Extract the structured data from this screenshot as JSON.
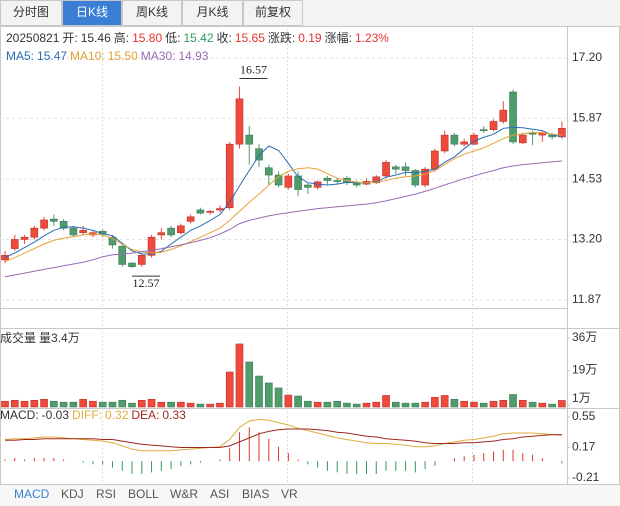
{
  "tabs": [
    "分时图",
    "日K线",
    "周K线",
    "月K线",
    "前复权"
  ],
  "active_tab": 1,
  "info": {
    "date": "20250821",
    "fields": [
      {
        "label": "开:",
        "value": "15.46",
        "color": "#333333"
      },
      {
        "label": "高:",
        "value": "15.80",
        "color": "#e2322b"
      },
      {
        "label": "低:",
        "value": "15.42",
        "color": "#2f9a5a"
      },
      {
        "label": "收:",
        "value": "15.65",
        "color": "#e2322b"
      },
      {
        "label": "涨跌:",
        "value": "0.19",
        "color": "#e2322b"
      },
      {
        "label": "涨幅:",
        "value": "1.23%",
        "color": "#e2322b"
      }
    ]
  },
  "indicator_tabs": [
    "MACD",
    "KDJ",
    "RSI",
    "BOLL",
    "W&R",
    "ASI",
    "BIAS",
    "VR"
  ],
  "active_indicator": 0,
  "chart_data": [
    {
      "type": "candlestick",
      "up_color": "#ef4a3c",
      "down_color": "#4f9d6d",
      "open": [
        12.75,
        13.0,
        13.2,
        13.25,
        13.45,
        13.65,
        13.6,
        13.45,
        13.35,
        13.3,
        13.38,
        13.25,
        13.05,
        12.68,
        12.65,
        12.85,
        13.3,
        13.45,
        13.35,
        13.6,
        13.85,
        13.8,
        13.85,
        13.9,
        15.3,
        15.5,
        15.2,
        14.78,
        14.62,
        14.35,
        14.6,
        14.4,
        14.35,
        14.55,
        14.5,
        14.55,
        14.45,
        14.42,
        14.45,
        14.6,
        14.8,
        14.8,
        14.72,
        14.4,
        14.75,
        15.15,
        15.5,
        15.3,
        15.3,
        15.62,
        15.62,
        15.8,
        16.45,
        15.33,
        15.55,
        15.5,
        15.5,
        15.46
      ],
      "high": [
        12.95,
        13.3,
        13.3,
        13.5,
        13.7,
        13.75,
        13.65,
        13.5,
        13.5,
        13.4,
        13.42,
        13.3,
        13.1,
        12.7,
        12.9,
        13.3,
        13.45,
        13.5,
        13.55,
        13.75,
        13.9,
        13.85,
        13.95,
        15.35,
        16.57,
        15.7,
        15.3,
        14.85,
        14.7,
        14.65,
        14.7,
        14.45,
        14.5,
        14.6,
        14.55,
        14.6,
        14.5,
        14.55,
        14.62,
        14.95,
        14.85,
        14.9,
        14.75,
        14.8,
        15.2,
        15.6,
        15.55,
        15.42,
        15.55,
        15.7,
        15.85,
        16.25,
        16.5,
        15.55,
        15.6,
        15.6,
        15.55,
        15.8
      ],
      "low": [
        12.68,
        12.95,
        13.1,
        13.2,
        13.4,
        13.5,
        13.4,
        13.25,
        13.3,
        13.25,
        13.25,
        13.0,
        12.6,
        12.57,
        12.6,
        12.8,
        13.2,
        13.25,
        13.3,
        13.55,
        13.75,
        13.75,
        13.8,
        13.85,
        15.2,
        14.85,
        14.8,
        14.4,
        14.35,
        14.3,
        14.15,
        14.2,
        14.3,
        14.4,
        14.42,
        14.4,
        14.35,
        14.4,
        14.42,
        14.55,
        14.65,
        14.6,
        14.35,
        14.35,
        14.7,
        15.1,
        15.25,
        15.25,
        15.28,
        15.55,
        15.58,
        15.75,
        15.3,
        15.3,
        15.28,
        15.35,
        15.4,
        15.42
      ],
      "close": [
        12.85,
        13.2,
        13.25,
        13.45,
        13.63,
        13.6,
        13.45,
        13.3,
        13.4,
        13.35,
        13.32,
        13.08,
        12.65,
        12.6,
        12.85,
        13.25,
        13.35,
        13.3,
        13.5,
        13.7,
        13.78,
        13.82,
        13.88,
        15.3,
        16.3,
        15.3,
        14.95,
        14.62,
        14.4,
        14.6,
        14.3,
        14.35,
        14.47,
        14.5,
        14.48,
        14.45,
        14.4,
        14.48,
        14.58,
        14.9,
        14.75,
        14.72,
        14.4,
        14.75,
        15.15,
        15.5,
        15.3,
        15.35,
        15.5,
        15.6,
        15.8,
        16.05,
        15.35,
        15.5,
        15.52,
        15.55,
        15.46,
        15.65
      ],
      "series": [
        {
          "name": "MA5:",
          "latest": "15.47",
          "color": "#2a6cb5",
          "values": [
            12.8,
            12.9,
            13.02,
            13.14,
            13.28,
            13.4,
            13.47,
            13.48,
            13.45,
            13.4,
            13.33,
            13.28,
            13.12,
            12.95,
            12.88,
            12.88,
            12.94,
            13.1,
            13.25,
            13.4,
            13.5,
            13.62,
            13.75,
            14.02,
            14.38,
            14.72,
            15.05,
            15.26,
            15.16,
            14.88,
            14.58,
            14.45,
            14.42,
            14.4,
            14.42,
            14.46,
            14.45,
            14.45,
            14.47,
            14.57,
            14.62,
            14.68,
            14.67,
            14.7,
            14.75,
            14.9,
            15.02,
            15.2,
            15.37,
            15.45,
            15.52,
            15.65,
            15.67,
            15.66,
            15.63,
            15.6,
            15.5,
            15.47
          ]
        },
        {
          "name": "MA10:",
          "latest": "15.50",
          "color": "#e3a234",
          "values": [
            12.71,
            12.8,
            12.9,
            13.0,
            13.1,
            13.18,
            13.23,
            13.26,
            13.3,
            13.32,
            13.3,
            13.22,
            13.1,
            12.98,
            12.93,
            12.9,
            12.92,
            12.98,
            13.06,
            13.15,
            13.25,
            13.35,
            13.45,
            13.62,
            13.82,
            14.02,
            14.2,
            14.4,
            14.58,
            14.7,
            14.76,
            14.78,
            14.75,
            14.65,
            14.55,
            14.5,
            14.46,
            14.45,
            14.46,
            14.5,
            14.55,
            14.58,
            14.6,
            14.64,
            14.72,
            14.85,
            14.98,
            15.08,
            15.15,
            15.22,
            15.32,
            15.42,
            15.5,
            15.53,
            15.56,
            15.55,
            15.52,
            15.5
          ]
        },
        {
          "name": "MA30:",
          "latest": "14.93",
          "color": "#9a6bb4",
          "values": [
            12.38,
            12.42,
            12.46,
            12.5,
            12.54,
            12.58,
            12.62,
            12.66,
            12.7,
            12.75,
            12.82,
            12.86,
            12.88,
            12.9,
            12.93,
            12.96,
            13.0,
            13.04,
            13.08,
            13.13,
            13.18,
            13.24,
            13.32,
            13.42,
            13.55,
            13.62,
            13.67,
            13.72,
            13.76,
            13.79,
            13.82,
            13.85,
            13.88,
            13.9,
            13.92,
            13.94,
            13.96,
            13.98,
            14.01,
            14.05,
            14.1,
            14.15,
            14.2,
            14.26,
            14.33,
            14.4,
            14.47,
            14.54,
            14.6,
            14.66,
            14.72,
            14.78,
            14.82,
            14.85,
            14.87,
            14.89,
            14.91,
            14.93
          ]
        }
      ],
      "annotations": [
        16.57,
        12.57
      ],
      "ylim": [
        11.69,
        17.86
      ],
      "yticks": [
        {
          "value": 17.2,
          "label": "17.20"
        },
        15.87,
        14.53,
        {
          "value": 13.2,
          "label": "13.20"
        },
        11.87
      ],
      "grid": true
    },
    {
      "type": "bar",
      "title": "成交量",
      "subtitle": "量3.4万",
      "values": [
        3,
        3.5,
        3,
        3.5,
        4,
        3,
        2.5,
        2.5,
        4,
        3,
        2.5,
        2.5,
        3.5,
        2,
        3.5,
        4,
        2.5,
        2.5,
        2.5,
        2,
        1.5,
        1.5,
        2,
        18.2,
        32.8,
        23.4,
        16.1,
        12.5,
        9.9,
        6.2,
        5.7,
        3,
        2.5,
        2.5,
        3,
        2,
        1.5,
        2,
        2.5,
        6,
        2.5,
        2,
        2,
        2.5,
        5,
        6,
        4,
        3,
        2.5,
        2,
        3,
        3.5,
        6.5,
        3.5,
        2.5,
        2,
        1.5,
        3.4
      ],
      "ylim": [
        0,
        41.1
      ],
      "yticks": [
        {
          "value": 36,
          "label": "36万"
        },
        {
          "value": 19,
          "label": "19万"
        },
        {
          "value": 1,
          "label": "1万"
        }
      ]
    },
    {
      "type": "macd",
      "title": "MACD:",
      "title_value": "-0.03",
      "values": [
        0.02,
        0.04,
        0.02,
        0.04,
        0.04,
        0.04,
        0.02,
        0,
        -0.02,
        -0.04,
        -0.04,
        -0.08,
        -0.12,
        -0.16,
        -0.16,
        -0.14,
        -0.12,
        -0.1,
        -0.06,
        -0.04,
        -0.02,
        0,
        0.02,
        0.16,
        0.36,
        0.42,
        0.36,
        0.28,
        0.18,
        0.1,
        0.02,
        -0.04,
        -0.08,
        -0.12,
        -0.14,
        -0.16,
        -0.16,
        -0.16,
        -0.16,
        -0.12,
        -0.12,
        -0.12,
        -0.14,
        -0.1,
        -0.06,
        0,
        0.04,
        0.06,
        0.08,
        0.1,
        0.12,
        0.14,
        0.14,
        0.1,
        0.08,
        0.04,
        0,
        -0.03
      ],
      "series": [
        {
          "name": "DIFF:",
          "latest": "0.32",
          "color": "#e0ad3c",
          "values": [
            0.27,
            0.28,
            0.28,
            0.29,
            0.3,
            0.3,
            0.29,
            0.28,
            0.27,
            0.26,
            0.25,
            0.23,
            0.19,
            0.15,
            0.13,
            0.13,
            0.13,
            0.13,
            0.14,
            0.15,
            0.16,
            0.17,
            0.18,
            0.27,
            0.42,
            0.5,
            0.52,
            0.51,
            0.48,
            0.45,
            0.41,
            0.38,
            0.35,
            0.32,
            0.29,
            0.27,
            0.25,
            0.23,
            0.22,
            0.22,
            0.21,
            0.2,
            0.18,
            0.18,
            0.19,
            0.22,
            0.24,
            0.26,
            0.27,
            0.29,
            0.31,
            0.34,
            0.35,
            0.35,
            0.35,
            0.34,
            0.33,
            0.32
          ]
        },
        {
          "name": "DEA:",
          "latest": "0.33",
          "color": "#a0281e",
          "values": [
            0.26,
            0.26,
            0.27,
            0.27,
            0.28,
            0.28,
            0.28,
            0.28,
            0.28,
            0.28,
            0.27,
            0.27,
            0.25,
            0.23,
            0.21,
            0.2,
            0.19,
            0.18,
            0.17,
            0.17,
            0.17,
            0.17,
            0.17,
            0.19,
            0.24,
            0.29,
            0.34,
            0.37,
            0.39,
            0.4,
            0.4,
            0.4,
            0.39,
            0.38,
            0.36,
            0.35,
            0.33,
            0.31,
            0.3,
            0.28,
            0.27,
            0.26,
            0.25,
            0.23,
            0.22,
            0.22,
            0.22,
            0.23,
            0.23,
            0.24,
            0.25,
            0.27,
            0.28,
            0.3,
            0.31,
            0.32,
            0.33,
            0.33
          ]
        }
      ],
      "up_color": "#e2322b",
      "down_color": "#2f9a5a",
      "ylim": [
        -0.285,
        0.637
      ],
      "yticks": [
        0.55,
        0.17,
        -0.21
      ]
    }
  ]
}
